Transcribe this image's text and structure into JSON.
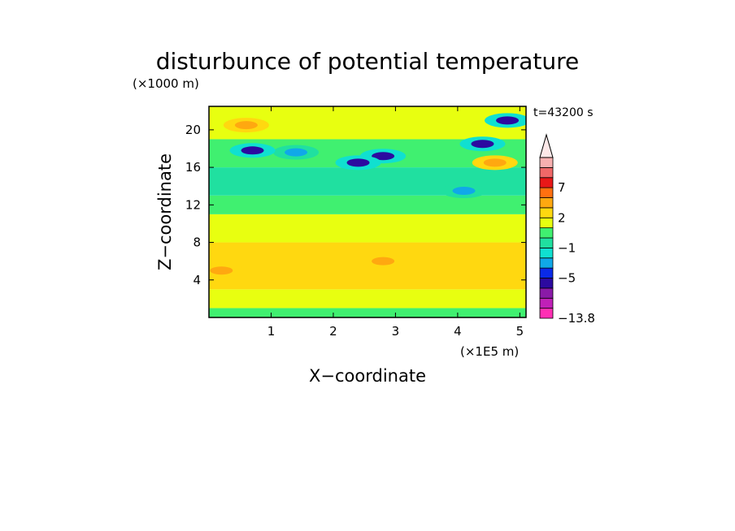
{
  "chart_data": {
    "type": "heatmap",
    "title": "disturbunce of potential temperature",
    "time_label": "t=43200 s",
    "xlabel": "X−coordinate",
    "ylabel": "Z−coordinate",
    "x_unit_label": "(×1E5 m)",
    "y_unit_label": "(×1000 m)",
    "xlim": [
      0,
      5.1
    ],
    "ylim": [
      0,
      22.5
    ],
    "xticks": [
      1,
      2,
      3,
      4,
      5
    ],
    "xtick_labels": [
      "1",
      "2",
      "3",
      "4",
      "5"
    ],
    "yticks": [
      4,
      8,
      12,
      16,
      20
    ],
    "ytick_labels": [
      "4",
      "8",
      "12",
      "16",
      "20"
    ],
    "colorbar": {
      "levels": [
        -13.8,
        -11,
        -9,
        -7,
        -5,
        -3,
        -2,
        -1,
        0,
        1,
        2,
        3,
        5,
        7,
        9,
        11
      ],
      "colors": [
        "#ff2fb4",
        "#c020b8",
        "#8a1aa8",
        "#2c0aa0",
        "#0a2ae8",
        "#10a8e8",
        "#10e0d0",
        "#20e0a0",
        "#40f070",
        "#e8ff10",
        "#ffd810",
        "#ffa810",
        "#ff7010",
        "#e81818",
        "#f06868",
        "#f8b0b0"
      ],
      "extend_max": true,
      "labels": [
        "7",
        "2",
        "−1",
        "−5",
        "−13.8"
      ]
    },
    "field_bands": [
      {
        "z_range": [
          0,
          1
        ],
        "value": 0.8
      },
      {
        "z_range": [
          1,
          3
        ],
        "value": 1.6
      },
      {
        "z_range": [
          3,
          8
        ],
        "value": 2.3
      },
      {
        "z_range": [
          8,
          11
        ],
        "value": 1.2
      },
      {
        "z_range": [
          11,
          13
        ],
        "value": 0.7
      },
      {
        "z_range": [
          13,
          16
        ],
        "value": -0.4
      },
      {
        "z_range": [
          16,
          19
        ],
        "value": 0.5
      },
      {
        "z_range": [
          19,
          22.5
        ],
        "value": 1.0
      }
    ],
    "features": [
      {
        "x": 2.8,
        "z": 17.2,
        "value": -6
      },
      {
        "x": 2.4,
        "z": 16.5,
        "value": -6
      },
      {
        "x": 1.4,
        "z": 17.6,
        "value": -2.5
      },
      {
        "x": 0.7,
        "z": 17.8,
        "value": -5.5
      },
      {
        "x": 4.1,
        "z": 13.5,
        "value": -2.5
      },
      {
        "x": 4.8,
        "z": 21.0,
        "value": -5.5
      },
      {
        "x": 4.4,
        "z": 18.5,
        "value": -5.5
      },
      {
        "x": 0.6,
        "z": 20.5,
        "value": 3.5
      },
      {
        "x": 4.6,
        "z": 16.5,
        "value": 3.5
      },
      {
        "x": 2.8,
        "z": 6.0,
        "value": 3.5
      },
      {
        "x": 0.2,
        "z": 5.0,
        "value": 3.5
      }
    ]
  }
}
